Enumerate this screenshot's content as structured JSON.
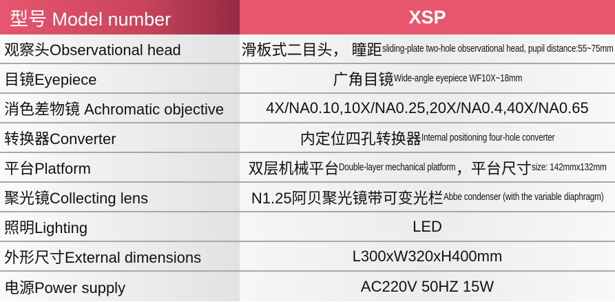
{
  "header": {
    "label": "型号 Model number",
    "value": "XSP"
  },
  "rows": [
    {
      "label": "观察头Observational head",
      "value": [
        {
          "t": "滑板式二目头， 瞳距"
        },
        {
          "t": "sliding-plate two-hole observational head, pupil distance:55~75mm",
          "s": 1
        }
      ]
    },
    {
      "label": "目镜Eyepiece",
      "value": [
        {
          "t": "广角目镜"
        },
        {
          "t": "Wide-angle eyepiece WF10X~18mm",
          "s": 1
        }
      ]
    },
    {
      "label": "消色差物镜 Achromatic objective",
      "value": [
        {
          "t": "4X/NA0.10,10X/NA0.25,20X/NA0.4,40X/NA0.65"
        }
      ]
    },
    {
      "label": "转换器Converter",
      "value": [
        {
          "t": "内定位四孔转换器"
        },
        {
          "t": "Internal positioning four-hole converter",
          "s": 1
        }
      ]
    },
    {
      "label": "平台Platform",
      "value": [
        {
          "t": "双层机械平台"
        },
        {
          "t": "Double-layer mechanical platform",
          "s": 1
        },
        {
          "t": "，平台尺寸"
        },
        {
          "t": "size: 142mmx132mm",
          "s": 1
        }
      ]
    },
    {
      "label": "聚光镜Collecting lens",
      "value": [
        {
          "t": "N1.25阿贝聚光镜带可变光栏 "
        },
        {
          "t": "Abbe condenser (with the variable diaphragm)",
          "s": 1
        }
      ]
    },
    {
      "label": "照明Lighting",
      "value": [
        {
          "t": "LED"
        }
      ]
    },
    {
      "label": "外形尺寸External dimensions",
      "value": [
        {
          "t": "L300xW320xH400mm"
        }
      ]
    },
    {
      "label": "电源Power supply",
      "value": [
        {
          "t": "AC220V  50HZ  15W"
        }
      ]
    }
  ]
}
